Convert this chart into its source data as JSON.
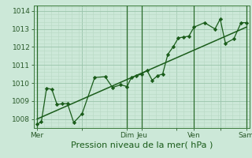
{
  "xlabel": "Pression niveau de la mer( hPa )",
  "bg_color": "#cce8d8",
  "grid_major_color": "#99c4aa",
  "grid_minor_color": "#b8d8c4",
  "line_color": "#1a5c1a",
  "ylim": [
    1007.5,
    1014.3
  ],
  "xlim": [
    -0.3,
    20.3
  ],
  "ytick_positions": [
    1008,
    1009,
    1010,
    1011,
    1012,
    1013,
    1014
  ],
  "xtick_labels": [
    "Mer",
    "",
    "Dim",
    "Jeu",
    "",
    "Ven",
    "",
    "Sam"
  ],
  "xtick_positions": [
    0,
    4.3,
    8.6,
    10.0,
    13.3,
    15.0,
    17.5,
    20.0
  ],
  "day_lines_x": [
    0,
    8.6,
    10.0,
    15.0,
    20.0
  ],
  "data_x": [
    0.0,
    0.4,
    0.9,
    1.4,
    1.9,
    2.4,
    2.9,
    3.5,
    4.3,
    5.5,
    6.5,
    7.2,
    8.0,
    8.6,
    9.0,
    9.5,
    10.0,
    10.5,
    11.0,
    11.5,
    12.0,
    12.5,
    13.0,
    13.5,
    14.0,
    14.5,
    15.0,
    16.0,
    17.0,
    17.5,
    18.0,
    18.8,
    19.5,
    20.0
  ],
  "data_y": [
    1007.7,
    1007.85,
    1009.7,
    1009.65,
    1008.8,
    1008.85,
    1008.85,
    1007.8,
    1008.3,
    1010.3,
    1010.35,
    1009.75,
    1009.9,
    1009.8,
    1010.3,
    1010.4,
    1010.5,
    1010.7,
    1010.15,
    1010.4,
    1010.5,
    1011.6,
    1012.0,
    1012.5,
    1012.55,
    1012.6,
    1013.1,
    1013.35,
    1013.0,
    1013.55,
    1012.2,
    1012.45,
    1013.35,
    1013.35
  ],
  "trend_x": [
    0.0,
    20.0
  ],
  "trend_y": [
    1008.0,
    1013.1
  ],
  "xlabel_fontsize": 8,
  "tick_fontsize": 6.5
}
